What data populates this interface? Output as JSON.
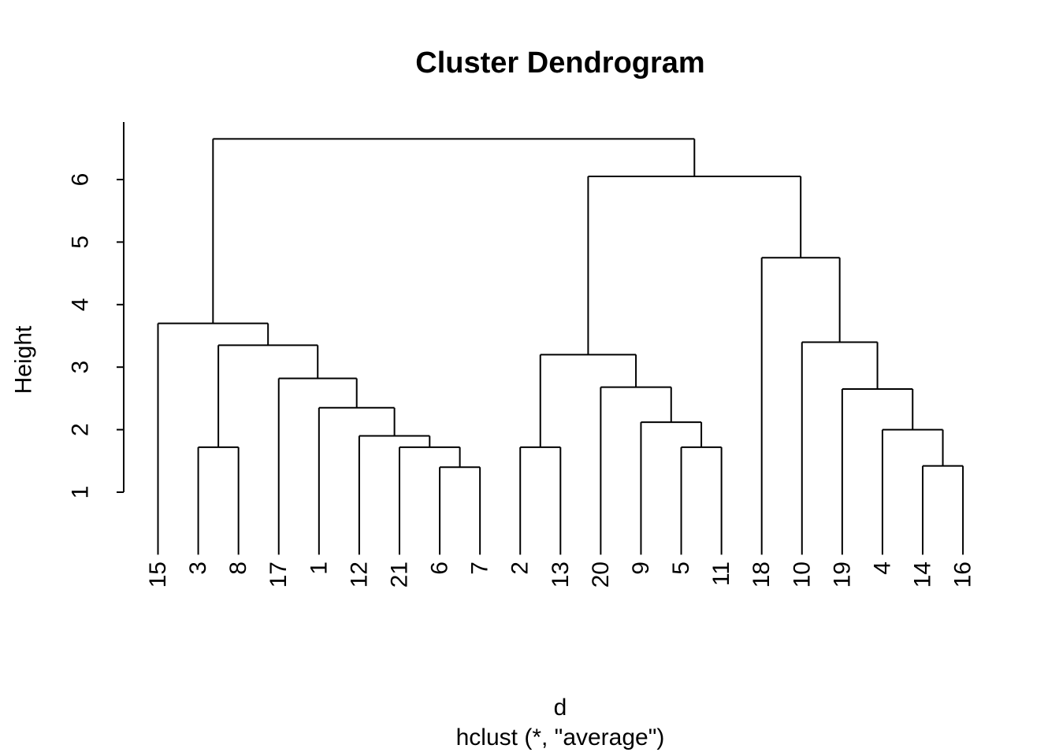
{
  "chart_data": {
    "type": "dendrogram",
    "title": "Cluster Dendrogram",
    "ylabel": "Height",
    "xlabel": "d",
    "sub": "hclust (*, \"average\")",
    "y_ticks": [
      1,
      2,
      3,
      4,
      5,
      6
    ],
    "ylim_shown": [
      1,
      6.92
    ],
    "legend": "none",
    "grid": false,
    "leaf_order": [
      "15",
      "3",
      "8",
      "17",
      "1",
      "12",
      "21",
      "6",
      "7",
      "2",
      "13",
      "20",
      "9",
      "5",
      "11",
      "18",
      "10",
      "19",
      "4",
      "14",
      "16"
    ],
    "tree": {
      "h": 6.65,
      "children": [
        {
          "h": 3.7,
          "children": [
            {
              "leaf": "15"
            },
            {
              "h": 3.35,
              "children": [
                {
                  "h": 1.72,
                  "children": [
                    {
                      "leaf": "3"
                    },
                    {
                      "leaf": "8"
                    }
                  ]
                },
                {
                  "h": 2.82,
                  "children": [
                    {
                      "leaf": "17"
                    },
                    {
                      "h": 2.35,
                      "children": [
                        {
                          "leaf": "1"
                        },
                        {
                          "h": 1.9,
                          "children": [
                            {
                              "leaf": "12"
                            },
                            {
                              "h": 1.72,
                              "children": [
                                {
                                  "leaf": "21"
                                },
                                {
                                  "h": 1.4,
                                  "children": [
                                    {
                                      "leaf": "6"
                                    },
                                    {
                                      "leaf": "7"
                                    }
                                  ]
                                }
                              ]
                            }
                          ]
                        }
                      ]
                    }
                  ]
                }
              ]
            }
          ]
        },
        {
          "h": 6.05,
          "children": [
            {
              "h": 3.2,
              "children": [
                {
                  "h": 1.72,
                  "children": [
                    {
                      "leaf": "2"
                    },
                    {
                      "leaf": "13"
                    }
                  ]
                },
                {
                  "h": 2.68,
                  "children": [
                    {
                      "leaf": "20"
                    },
                    {
                      "h": 2.12,
                      "children": [
                        {
                          "leaf": "9"
                        },
                        {
                          "h": 1.72,
                          "children": [
                            {
                              "leaf": "5"
                            },
                            {
                              "leaf": "11"
                            }
                          ]
                        }
                      ]
                    }
                  ]
                }
              ]
            },
            {
              "h": 4.75,
              "children": [
                {
                  "leaf": "18"
                },
                {
                  "h": 3.4,
                  "children": [
                    {
                      "leaf": "10"
                    },
                    {
                      "h": 2.65,
                      "children": [
                        {
                          "leaf": "19"
                        },
                        {
                          "h": 2.0,
                          "children": [
                            {
                              "leaf": "4"
                            },
                            {
                              "h": 1.42,
                              "children": [
                                {
                                  "leaf": "14"
                                },
                                {
                                  "leaf": "16"
                                }
                              ]
                            }
                          ]
                        }
                      ]
                    }
                  ]
                }
              ]
            }
          ]
        }
      ]
    },
    "colors": {
      "line": "#000000",
      "text": "#000000",
      "background": "#ffffff"
    }
  }
}
